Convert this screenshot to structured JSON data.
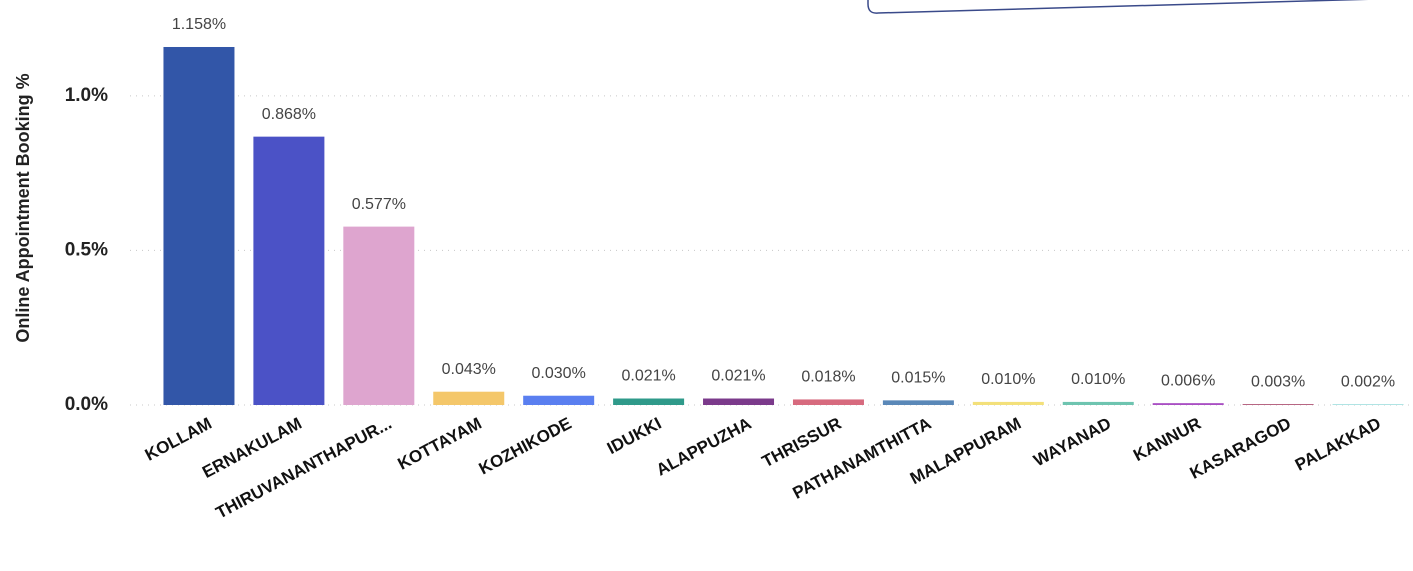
{
  "chart_data": {
    "type": "bar",
    "y_label": "Online Appointment Booking %",
    "categories": [
      "KOLLAM",
      "ERNAKULAM",
      "THIRUVANANTHAPUR...",
      "KOTTAYAM",
      "KOZHIKODE",
      "IDUKKI",
      "ALAPPUZHA",
      "THRISSUR",
      "PATHANAMTHITTA",
      "MALAPPURAM",
      "WAYANAD",
      "KANNUR",
      "KASARAGOD",
      "PALAKKAD"
    ],
    "values": [
      1.158,
      0.868,
      0.577,
      0.043,
      0.03,
      0.021,
      0.021,
      0.018,
      0.015,
      0.01,
      0.01,
      0.006,
      0.003,
      0.002
    ],
    "value_labels": [
      "1.158%",
      "0.868%",
      "0.577%",
      "0.043%",
      "0.030%",
      "0.021%",
      "0.021%",
      "0.018%",
      "0.015%",
      "0.010%",
      "0.010%",
      "0.006%",
      "0.003%",
      "0.002%"
    ],
    "colors": [
      "#3256a8",
      "#4b52c6",
      "#dea5cf",
      "#f4c76a",
      "#5a7ff0",
      "#2f9a8a",
      "#7b3a8b",
      "#d76a7e",
      "#5a88b8",
      "#f3e07a",
      "#6ec4b0",
      "#a94fc3",
      "#b25a7a",
      "#7fd3d3"
    ],
    "ylim": [
      0,
      1.31
    ],
    "yticks": [
      {
        "value": 0,
        "label": "0.0%"
      },
      {
        "value": 0.5,
        "label": "0.5%"
      },
      {
        "value": 1.0,
        "label": "1.0%"
      }
    ],
    "grid": true
  }
}
